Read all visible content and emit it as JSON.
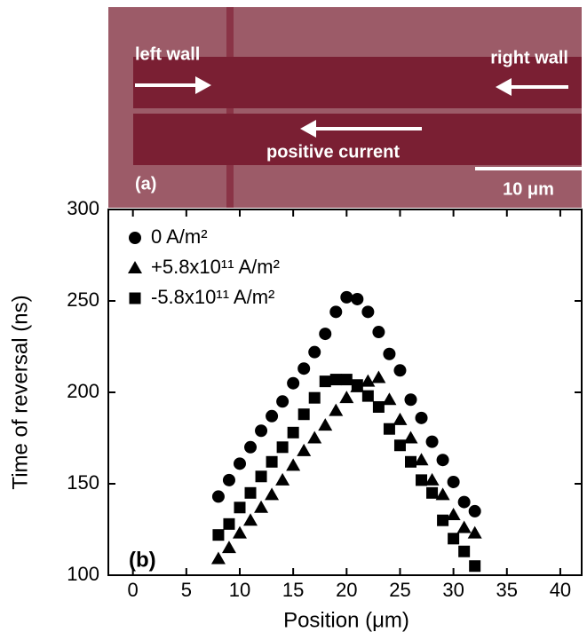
{
  "image": {
    "panel": "(a)",
    "left": "left wall",
    "right": "right wall",
    "current": "positive current",
    "scale": "10 μm"
  },
  "chart_data": {
    "type": "scatter",
    "panel": "(b)",
    "x_label": "Position (μm)",
    "y_label": "Time of reversal (ns)",
    "xlim": [
      -2.3,
      42
    ],
    "ylim": [
      100,
      300
    ],
    "xticks": [
      0,
      5,
      10,
      15,
      20,
      25,
      30,
      35,
      40
    ],
    "yticks": [
      100,
      150,
      200,
      250,
      300
    ],
    "x": [
      8,
      9,
      10,
      11,
      12,
      13,
      14,
      15,
      16,
      17,
      18,
      19,
      20,
      21,
      22,
      23,
      24,
      25,
      26,
      27,
      28,
      29,
      30,
      31,
      32
    ],
    "series": [
      {
        "name": "0 A/m²",
        "marker": "circle",
        "color": "#000000",
        "values": [
          143,
          152,
          161,
          170,
          179,
          187,
          195,
          205,
          213,
          222,
          232,
          244,
          252,
          251,
          244,
          233,
          221,
          212,
          196,
          186,
          173,
          163,
          151,
          140,
          135
        ]
      },
      {
        "name": "+5.8x10¹¹ A/m²",
        "marker": "triangle",
        "color": "#000000",
        "values": [
          109,
          115,
          123,
          130,
          137,
          144,
          152,
          160,
          168,
          175,
          182,
          190,
          197,
          203,
          206,
          208,
          196,
          185,
          175,
          163,
          152,
          144,
          133,
          126,
          123
        ]
      },
      {
        "name": "-5.8x10¹¹ A/m²",
        "marker": "square",
        "color": "#000000",
        "values": [
          122,
          128,
          137,
          145,
          154,
          162,
          170,
          178,
          188,
          197,
          206,
          207,
          207,
          204,
          198,
          192,
          180,
          171,
          162,
          152,
          145,
          130,
          120,
          113,
          105
        ]
      }
    ]
  }
}
